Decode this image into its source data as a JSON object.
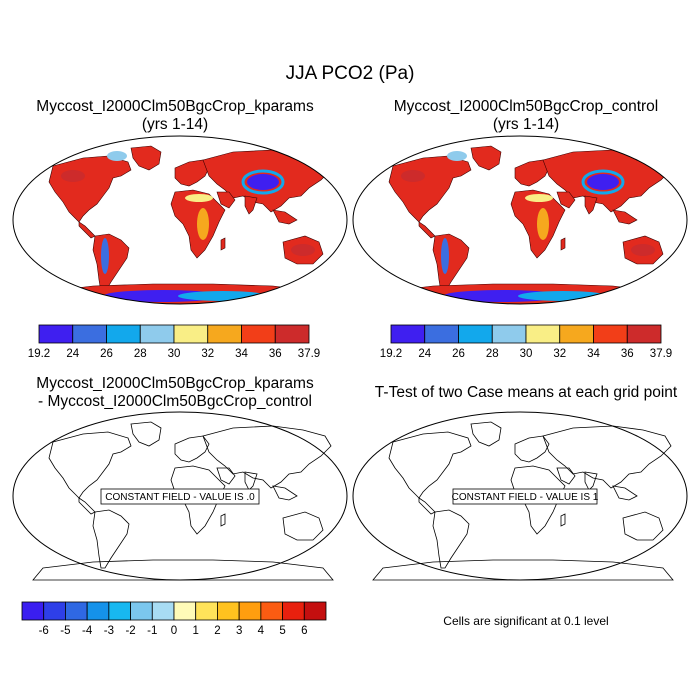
{
  "title": "JJA PCO2 (Pa)",
  "panels": [
    {
      "title_line1": "Myccost_I2000Clm50BgcCrop_kparams",
      "title_line2": "(yrs 1-14)",
      "fill": "field"
    },
    {
      "title_line1": "Myccost_I2000Clm50BgcCrop_control",
      "title_line2": "(yrs 1-14)",
      "fill": "field"
    },
    {
      "title_line1": "Myccost_I2000Clm50BgcCrop_kparams",
      "title_line2": "- Myccost_I2000Clm50BgcCrop_control",
      "fill": "none",
      "box_text": "CONSTANT FIELD - VALUE IS .0"
    },
    {
      "title_line1": "T-Test of two Case means at each grid point",
      "title_line2": "",
      "fill": "none",
      "box_text": "CONSTANT FIELD - VALUE IS 1"
    }
  ],
  "colorbar_top": {
    "labels": [
      "19.2",
      "24",
      "26",
      "28",
      "30",
      "32",
      "34",
      "36",
      "37.9"
    ],
    "colors": [
      "#3f1ff0",
      "#3b6ee0",
      "#12a8ec",
      "#8fcbec",
      "#f9ee86",
      "#f6a81e",
      "#f23e18",
      "#cd2b2b"
    ]
  },
  "colorbar_diff": {
    "labels": [
      "-6",
      "-5",
      "-4",
      "-3",
      "-2",
      "-1",
      "0",
      "1",
      "2",
      "3",
      "4",
      "5",
      "6"
    ],
    "colors": [
      "#3a1ef0",
      "#2e3fe8",
      "#2f68e3",
      "#1592ea",
      "#18b8f0",
      "#7bc7ee",
      "#a8dcf3",
      "#fffbb8",
      "#ffe35a",
      "#ffc21f",
      "#ff9e0f",
      "#fb5c12",
      "#e8200e",
      "#c40f0f"
    ]
  },
  "ttest_note": "Cells are significant at 0.1 level"
}
